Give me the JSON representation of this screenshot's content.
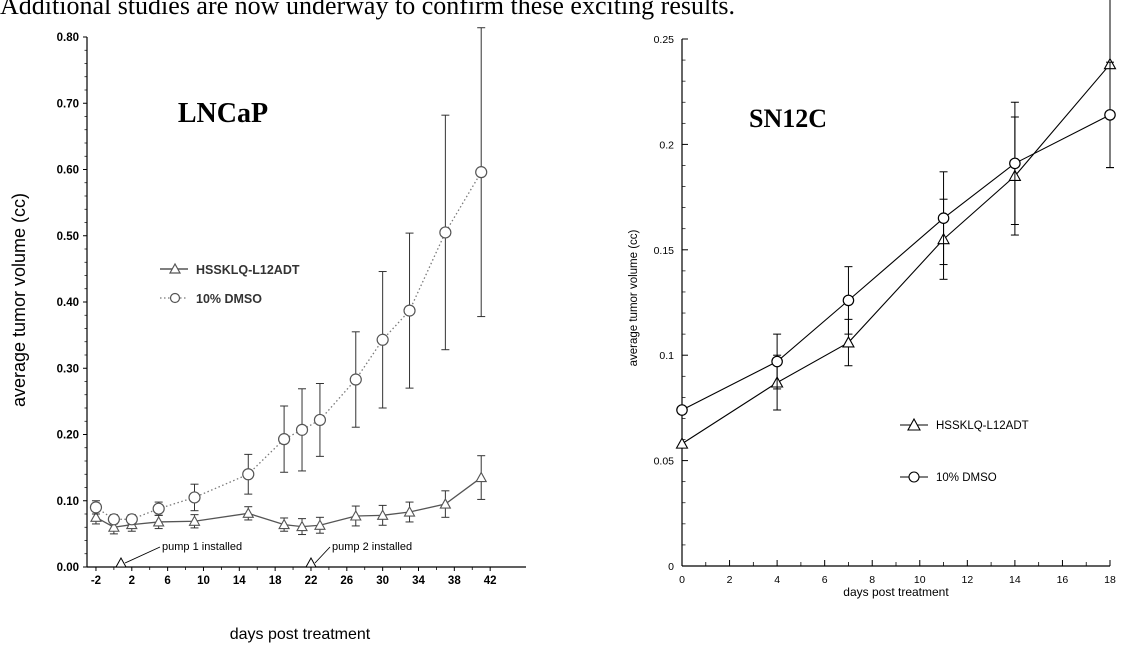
{
  "caption": "Additional studies are now underway to confirm these exciting results.",
  "chart_data": [
    {
      "type": "line",
      "title": "LNCaP",
      "xlabel": "days post treatment",
      "ylabel": "average tumor volume (cc)",
      "xlim": [
        -3,
        46
      ],
      "ylim": [
        0,
        0.8
      ],
      "xticks": [
        "-2",
        "2",
        "6",
        "10",
        "14",
        "18",
        "22",
        "26",
        "30",
        "34",
        "38",
        "42"
      ],
      "yticks": [
        "0.00",
        "0.10",
        "0.20",
        "0.30",
        "0.40",
        "0.50",
        "0.60",
        "0.70",
        "0.80"
      ],
      "legend_position": "middle-left",
      "grid": false,
      "series": [
        {
          "name": "HSSKLQ-L12ADT",
          "marker": "triangle",
          "line": "solid",
          "x": [
            -2,
            0,
            2,
            5,
            9,
            15,
            19,
            21,
            23,
            27,
            30,
            33,
            37,
            41
          ],
          "y": [
            0.075,
            0.06,
            0.064,
            0.068,
            0.069,
            0.081,
            0.064,
            0.061,
            0.063,
            0.077,
            0.078,
            0.083,
            0.095,
            0.135
          ],
          "err": [
            0.01,
            0.01,
            0.01,
            0.01,
            0.01,
            0.01,
            0.01,
            0.012,
            0.012,
            0.015,
            0.015,
            0.015,
            0.02,
            0.033
          ]
        },
        {
          "name": "10% DMSO",
          "marker": "circle",
          "line": "dotted",
          "x": [
            -2,
            0,
            2,
            5,
            9,
            15,
            19,
            21,
            23,
            27,
            30,
            33,
            37,
            41
          ],
          "y": [
            0.09,
            0.072,
            0.072,
            0.088,
            0.105,
            0.14,
            0.193,
            0.207,
            0.222,
            0.283,
            0.343,
            0.387,
            0.505,
            0.596
          ],
          "err": [
            0.01,
            0.007,
            0.007,
            0.01,
            0.02,
            0.03,
            0.05,
            0.062,
            0.055,
            0.072,
            0.103,
            0.117,
            0.177,
            0.218
          ]
        }
      ],
      "annotations": [
        {
          "text": "pump 1 installed",
          "x": 0,
          "y": 0.0
        },
        {
          "text": "pump 2 installed",
          "x": 21,
          "y": 0.0
        }
      ]
    },
    {
      "type": "line",
      "title": "SN12C",
      "xlabel": "days post treatment",
      "ylabel": "average tumor volume (cc)",
      "xlim": [
        0,
        18
      ],
      "ylim": [
        0,
        0.25
      ],
      "xticks": [
        "0",
        "2",
        "4",
        "6",
        "8",
        "10",
        "12",
        "14",
        "16",
        "18"
      ],
      "yticks": [
        "0",
        "0.05",
        "0.1",
        "0.15",
        "0.2",
        "0.25"
      ],
      "legend_position": "bottom-right",
      "grid": false,
      "series": [
        {
          "name": "HSSKLQ-L12ADT",
          "marker": "triangle",
          "line": "solid",
          "x": [
            0,
            4,
            7,
            11,
            14,
            18
          ],
          "y": [
            0.058,
            0.087,
            0.106,
            0.155,
            0.185,
            0.238
          ],
          "err": [
            0.0,
            0.013,
            0.011,
            0.019,
            0.028,
            0.049
          ]
        },
        {
          "name": "10% DMSO",
          "marker": "circle",
          "line": "solid",
          "x": [
            0,
            4,
            7,
            11,
            14,
            18
          ],
          "y": [
            0.074,
            0.097,
            0.126,
            0.165,
            0.191,
            0.214
          ],
          "err": [
            0.0,
            0.013,
            0.016,
            0.022,
            0.029,
            0.025
          ]
        }
      ]
    }
  ]
}
